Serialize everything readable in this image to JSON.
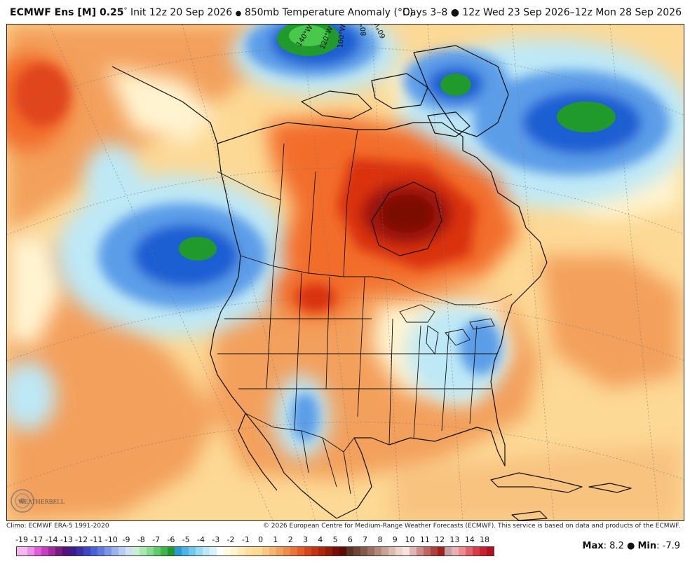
{
  "header": {
    "model": "ECMWF Ens [M] 0.25",
    "degree": "°",
    "init": "Init 12z 20 Sep 2026",
    "bullet": "●",
    "field": "850mb Temperature Anomaly (°C)",
    "valid": "Days 3–8 ● 12z Wed 23 Sep 2026–12z Mon 28 Sep 2026"
  },
  "map": {
    "longitude_labels": [
      "140°W",
      "120°W",
      "100°W",
      "80°W",
      "60°W"
    ],
    "logo_text": "WEATHERBELL",
    "colors": {
      "strong_warm": "#7a0b06",
      "warm": "#e03a10",
      "mild_warm": "#f3a05c",
      "slight_warm": "#fcd995",
      "neutral": "#fff4d0",
      "slight_cold": "#bde8f6",
      "cold": "#5b9de8",
      "strong_cold": "#1c5fd3",
      "extreme_cold": "#1f9a2b"
    }
  },
  "footer": {
    "climo": "Climo: ECMWF ERA-5 1991-2020",
    "copyright": "© 2026 European Centre for Medium-Range Weather Forecasts (ECMWF). This service is based on data and products of the ECMWF."
  },
  "legend": {
    "ticks": [
      "-19",
      "-17",
      "-14",
      "-13",
      "-12",
      "-11",
      "-10",
      "-9",
      "-8",
      "-7",
      "-6",
      "-5",
      "-4",
      "-3",
      "-2",
      "-1",
      "0",
      "1",
      "2",
      "3",
      "4",
      "5",
      "6",
      "7",
      "8",
      "9",
      "10",
      "11",
      "12",
      "13",
      "14",
      "18"
    ],
    "max_label": "Max",
    "max_value": ": 8.2",
    "sep": " ● ",
    "min_label": "Min",
    "min_value": ": -7.9"
  }
}
